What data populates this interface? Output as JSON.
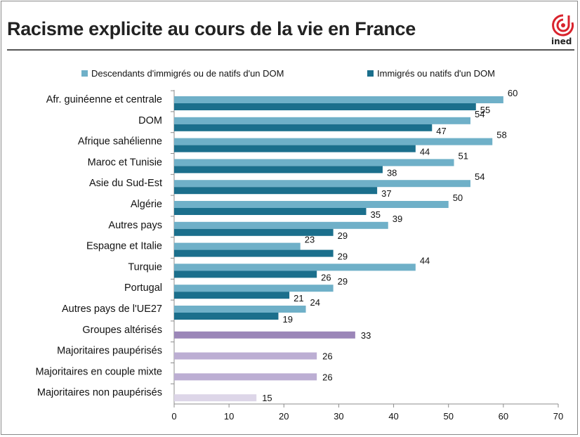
{
  "title": "Racisme explicite au cours de la vie en France",
  "logo_text": "ined",
  "colors": {
    "descendants": "#6fb0c8",
    "immigres": "#1b6f8c",
    "groupes_alterises": "#9b86b8",
    "majoritaires_paup": "#bcaed3",
    "majoritaires_nonpaup": "#ddd6e8"
  },
  "chart_data": {
    "type": "bar",
    "orientation": "horizontal",
    "xlim": [
      0,
      70
    ],
    "xticks": [
      0,
      10,
      20,
      30,
      40,
      50,
      60,
      70
    ],
    "legend_position": "top",
    "series": [
      {
        "name": "Descendants d'immigrés ou de natifs d'un DOM",
        "color": "#6fb0c8"
      },
      {
        "name": "Immigrés ou natifs d'un DOM",
        "color": "#1b6f8c"
      }
    ],
    "categories": [
      {
        "label": "Afr. guinéenne et centrale",
        "values": [
          60,
          55
        ]
      },
      {
        "label": "DOM",
        "values": [
          54,
          47
        ]
      },
      {
        "label": "Afrique sahélienne",
        "values": [
          58,
          44
        ]
      },
      {
        "label": "Maroc et Tunisie",
        "values": [
          51,
          38
        ]
      },
      {
        "label": "Asie du Sud-Est",
        "values": [
          54,
          37
        ]
      },
      {
        "label": "Algérie",
        "values": [
          50,
          35
        ]
      },
      {
        "label": "Autres pays",
        "values": [
          39,
          29
        ]
      },
      {
        "label": "Espagne et Italie",
        "values": [
          23,
          29
        ]
      },
      {
        "label": "Turquie",
        "values": [
          44,
          26
        ]
      },
      {
        "label": "Portugal",
        "values": [
          29,
          21
        ]
      },
      {
        "label": "Autres pays de l'UE27",
        "values": [
          24,
          19
        ]
      },
      {
        "label": "Groupes altérisés",
        "values": [
          33
        ],
        "color": "#9b86b8"
      },
      {
        "label": "Majoritaires paupérisés",
        "values": [
          26
        ],
        "color": "#bcaed3"
      },
      {
        "label": "Majoritaires en couple mixte",
        "values": [
          26
        ],
        "color": "#bcaed3"
      },
      {
        "label": "Majoritaires non paupérisés",
        "values": [
          15
        ],
        "color": "#ddd6e8"
      }
    ]
  }
}
